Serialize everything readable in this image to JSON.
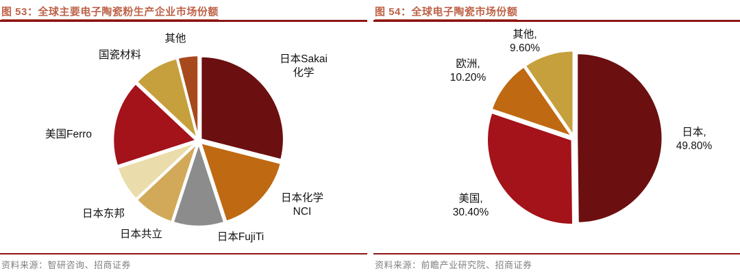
{
  "page": {
    "accent_rule_color": "#8C1515",
    "title_color": "#BE6248",
    "source_text_color": "#7F7F7F"
  },
  "chart_data": [
    {
      "type": "pie",
      "figure_no": "图 53",
      "title": "图 53：全球主要电子陶瓷粉生产企业市场份额",
      "labels": [
        "日本Sakai化学",
        "日本化学NCI",
        "日本FujiTi",
        "日本共立",
        "日本东邦",
        "美国Ferro",
        "国瓷材料",
        "其他"
      ],
      "values": [
        29,
        16,
        10,
        8,
        7,
        17,
        9,
        4
      ],
      "values_are_estimates": true,
      "colors": [
        "#6B0F10",
        "#BF6913",
        "#8C8C8C",
        "#D2A958",
        "#EBDCAB",
        "#A4121A",
        "#C6A03C",
        "#A8491D"
      ],
      "callouts": {
        "sakai": "日本Sakai\n化学",
        "nci": "日本化学\nNCI",
        "fujiti": "日本FujiTi",
        "gongli": "日本共立",
        "dongbang": "日本东邦",
        "ferro": "美国Ferro",
        "guoci": "国瓷材料",
        "qita": "其他"
      },
      "source": "资料来源：智研咨询、招商证券"
    },
    {
      "type": "pie",
      "figure_no": "图 54",
      "title": "图 54：全球电子陶瓷市场份额",
      "labels": [
        "日本",
        "美国",
        "欧洲",
        "其他"
      ],
      "values": [
        49.8,
        30.4,
        10.2,
        9.6
      ],
      "values_are_estimates": false,
      "colors": [
        "#6B0F10",
        "#A4121A",
        "#BF6913",
        "#C6A03C"
      ],
      "callouts": {
        "japan": "日本,\n49.80%",
        "usa": "美国,\n30.40%",
        "europe": "欧洲,\n10.20%",
        "qita": "其他,\n9.60%"
      },
      "source": "资料来源：前瞻产业研究院、招商证券"
    }
  ]
}
